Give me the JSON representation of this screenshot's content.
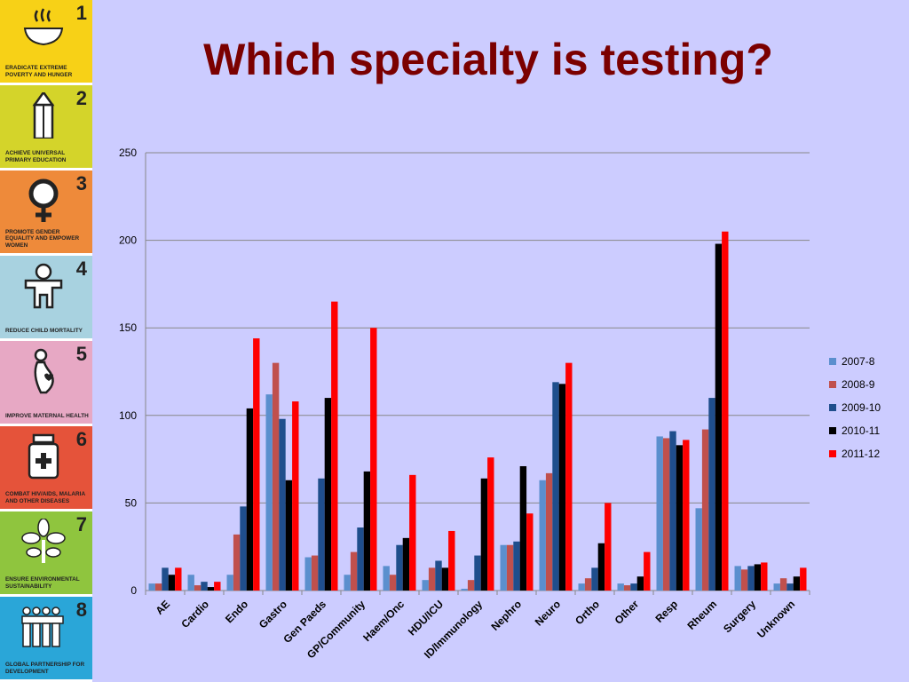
{
  "title": "Which specialty is testing?",
  "sidebar": {
    "goals": [
      {
        "num": "1",
        "text": "ERADICATE EXTREME POVERTY AND HUNGER",
        "color": "#f7d117",
        "icon": "bowl-icon"
      },
      {
        "num": "2",
        "text": "ACHIEVE UNIVERSAL PRIMARY EDUCATION",
        "color": "#d4d42a",
        "icon": "pencil-icon"
      },
      {
        "num": "3",
        "text": "PROMOTE GENDER EQUALITY AND EMPOWER WOMEN",
        "color": "#ee8a3a",
        "icon": "female-symbol-icon"
      },
      {
        "num": "4",
        "text": "REDUCE CHILD MORTALITY",
        "color": "#a8d2e0",
        "icon": "child-icon"
      },
      {
        "num": "5",
        "text": "IMPROVE MATERNAL HEALTH",
        "color": "#e7a8c4",
        "icon": "pregnant-woman-icon"
      },
      {
        "num": "6",
        "text": "COMBAT HIV/AIDS, MALARIA AND OTHER DISEASES",
        "color": "#e5533a",
        "icon": "medicine-bottle-icon"
      },
      {
        "num": "7",
        "text": "ENSURE ENVIRONMENTAL SUSTAINABILITY",
        "color": "#8fc53e",
        "icon": "plant-icon"
      },
      {
        "num": "8",
        "text": "GLOBAL PARTNERSHIP FOR DEVELOPMENT",
        "color": "#2aa6d8",
        "icon": "people-group-icon"
      }
    ]
  },
  "chart_data": {
    "type": "bar",
    "title": "",
    "xlabel": "",
    "ylabel": "",
    "ylim": [
      0,
      250
    ],
    "yticks": [
      0,
      50,
      100,
      150,
      200,
      250
    ],
    "grid": true,
    "legend_position": "right",
    "categories": [
      "AE",
      "Cardio",
      "Endo",
      "Gastro",
      "Gen Paeds",
      "GP/Community",
      "Haem/Onc",
      "HDU/ICU",
      "ID/Immunology",
      "Nephro",
      "Neuro",
      "Ortho",
      "Other",
      "Resp",
      "Rheum",
      "Surgery",
      "Unknown"
    ],
    "series": [
      {
        "name": "2007-8",
        "color": "#5b8fce",
        "values": [
          4,
          9,
          9,
          112,
          19,
          9,
          14,
          6,
          1,
          26,
          63,
          4,
          4,
          88,
          47,
          14,
          4
        ]
      },
      {
        "name": "2008-9",
        "color": "#c0504d",
        "values": [
          4,
          3,
          32,
          130,
          20,
          22,
          9,
          13,
          6,
          26,
          67,
          7,
          3,
          87,
          92,
          12,
          7
        ]
      },
      {
        "name": "2009-10",
        "color": "#1f4e8c",
        "values": [
          13,
          5,
          48,
          98,
          64,
          36,
          26,
          17,
          20,
          28,
          119,
          13,
          4,
          91,
          110,
          14,
          4
        ]
      },
      {
        "name": "2010-11",
        "color": "#000000",
        "values": [
          9,
          2,
          104,
          63,
          110,
          68,
          30,
          13,
          64,
          71,
          118,
          27,
          8,
          83,
          198,
          15,
          8
        ]
      },
      {
        "name": "2011-12",
        "color": "#ff0000",
        "values": [
          13,
          5,
          144,
          108,
          165,
          150,
          66,
          34,
          76,
          44,
          130,
          50,
          22,
          86,
          205,
          16,
          13
        ]
      }
    ]
  }
}
